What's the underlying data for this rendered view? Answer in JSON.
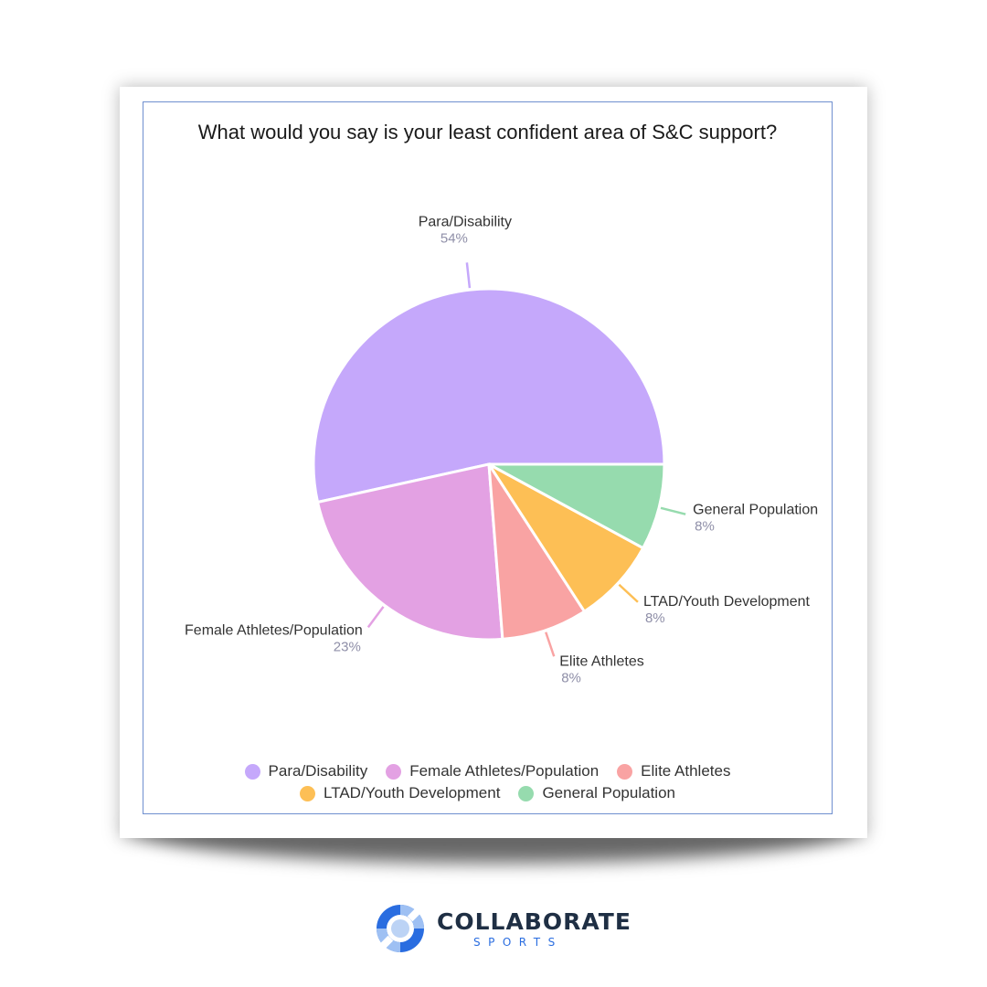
{
  "chart_data": {
    "type": "pie",
    "title": "What would you say is your least confident area of S&C support?",
    "slices": [
      {
        "label": "Para/Disability",
        "value": 54,
        "display": "54%",
        "color": "#c5a8fb"
      },
      {
        "label": "Female Athletes/Population",
        "value": 23,
        "display": "23%",
        "color": "#e3a1e3"
      },
      {
        "label": "Elite Athletes",
        "value": 8,
        "display": "8%",
        "color": "#f9a3a3"
      },
      {
        "label": "LTAD/Youth Development",
        "value": 8,
        "display": "8%",
        "color": "#fdbf55"
      },
      {
        "label": "General Population",
        "value": 8,
        "display": "8%",
        "color": "#96dbae"
      }
    ],
    "legend_position": "bottom"
  },
  "legend": {
    "row1": [
      "Para/Disability",
      "Female Athletes/Population",
      "Elite Athletes"
    ],
    "row2": [
      "LTAD/Youth Development",
      "General Population"
    ]
  },
  "branding": {
    "logo_word": "COLLABORATE",
    "logo_sub": "SPORTS"
  }
}
